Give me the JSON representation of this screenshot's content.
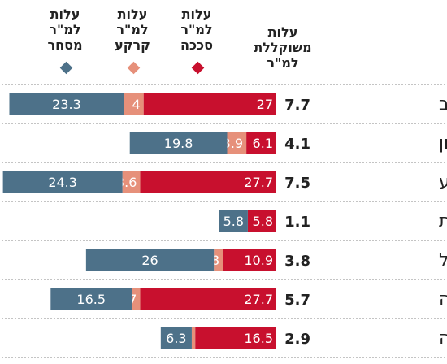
{
  "legend": {
    "weighted": "עלות\nמשוקללת\nלמ\"ר",
    "construction": "עלות\nלמ\"ר\nסככה",
    "land": "עלות\nלמ\"ר\nקרקע",
    "commerce": "עלות\nלמ\"ר\nמסחר"
  },
  "colors": {
    "construction": "#c8102e",
    "land": "#e6907a",
    "commerce": "#4d7189",
    "rule": "#888888"
  },
  "chart_data": {
    "type": "bar",
    "orientation": "horizontal-stacked",
    "categories": [
      "תל אביב",
      "ראשון לציון",
      "באר שבע",
      "נתיבות",
      "כרמיאל",
      "טבריה",
      "קרית שמונה"
    ],
    "weighted": [
      7.7,
      4.1,
      7.5,
      1.1,
      3.8,
      5.7,
      2.9
    ],
    "series": [
      {
        "name": "עלות למ\"ר סככה",
        "key": "construction",
        "values": [
          27,
          6.1,
          27.7,
          5.8,
          10.9,
          27.7,
          16.5
        ]
      },
      {
        "name": "עלות למ\"ר קרקע",
        "key": "land",
        "values": [
          4,
          3.9,
          3.6,
          0,
          1.8,
          1.7,
          0.7
        ]
      },
      {
        "name": "עלות למ\"ר מסחר",
        "key": "commerce",
        "values": [
          23.3,
          19.8,
          24.3,
          5.8,
          26,
          16.5,
          6.3
        ]
      }
    ]
  }
}
